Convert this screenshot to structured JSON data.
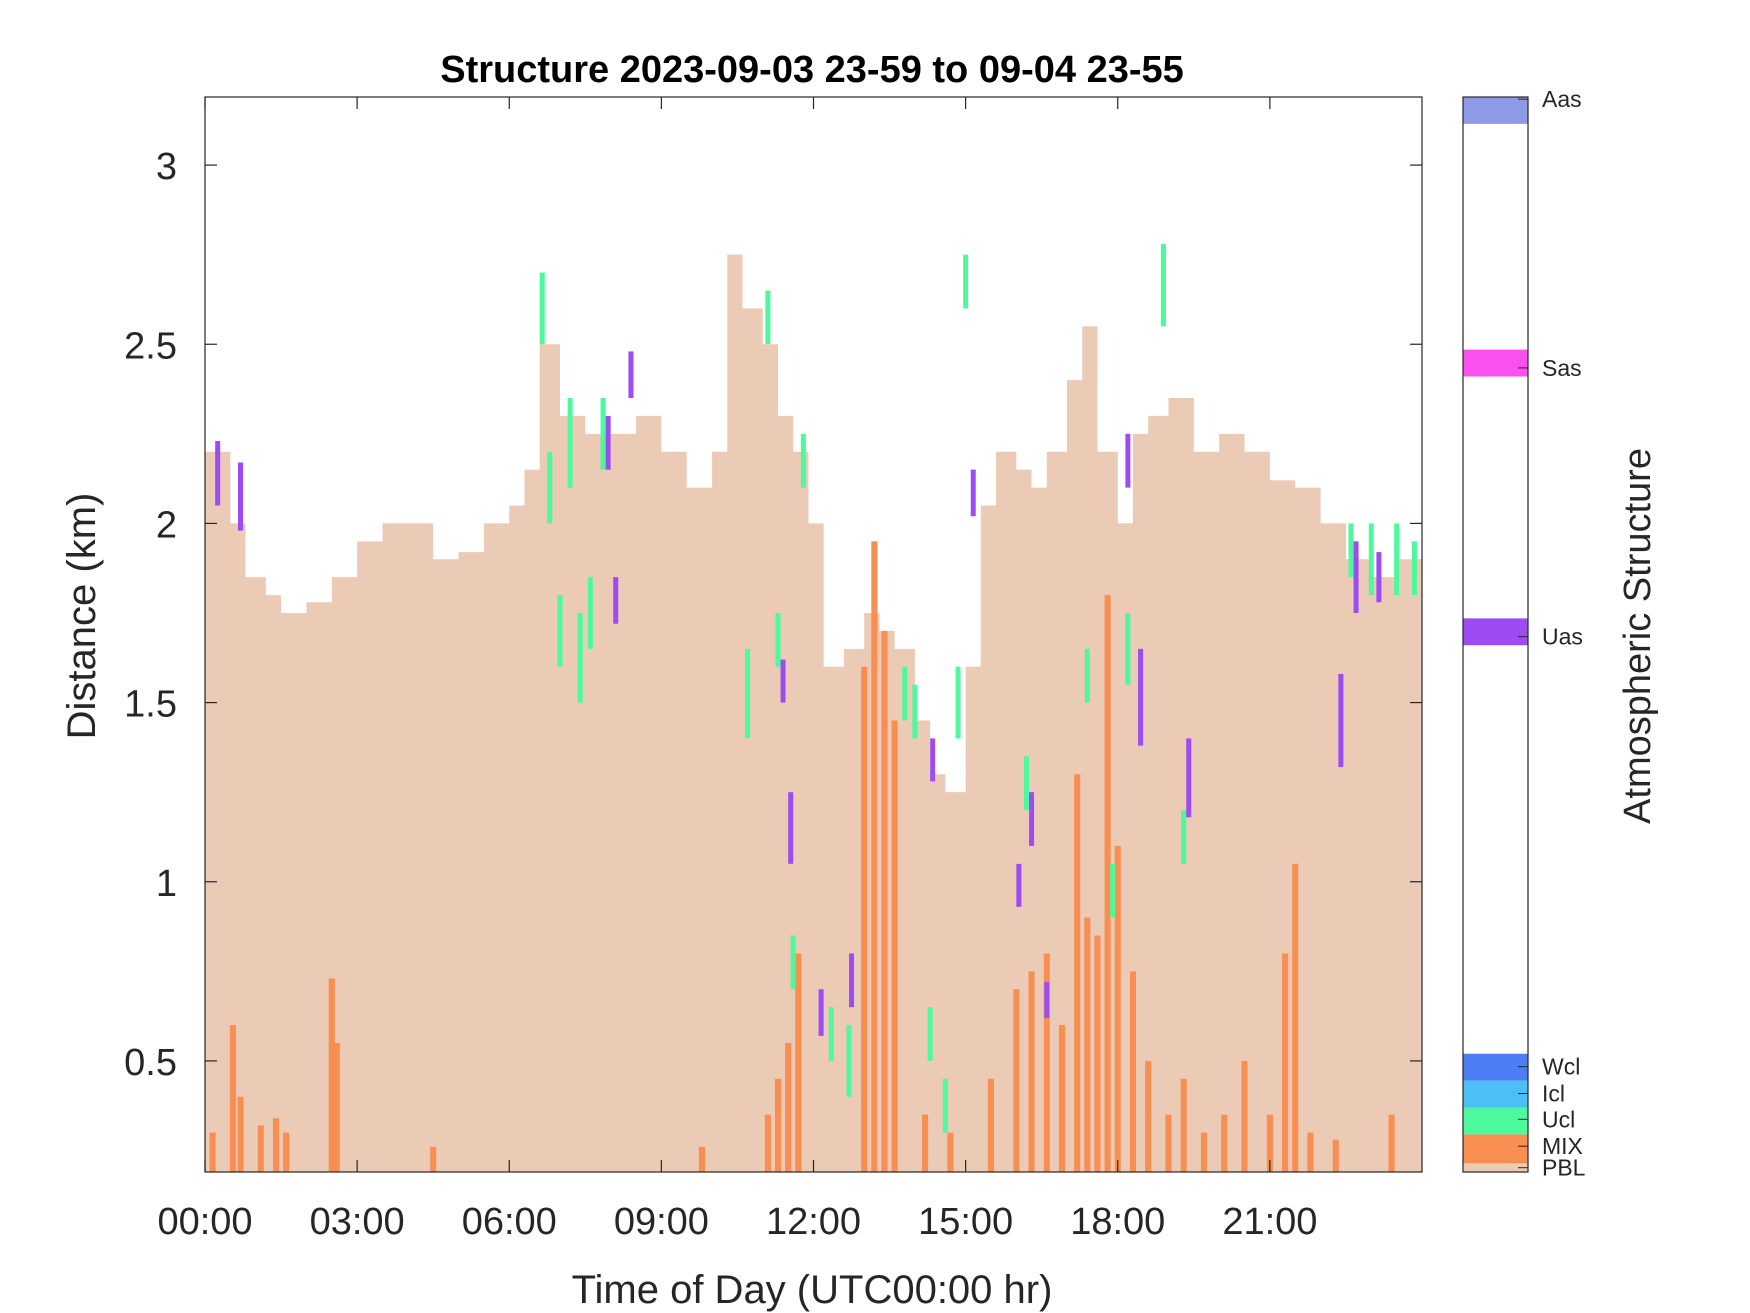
{
  "chart_data": {
    "type": "area",
    "title": "Structure 2023-09-03 23-59 to 09-04 23-55",
    "xlabel": "Time of Day (UTC00:00 hr)",
    "ylabel": "Distance (km)",
    "colorbar_label": "Atmospheric Structure",
    "xlim_hours": [
      0,
      24
    ],
    "ylim_km": [
      0.19,
      3.19
    ],
    "x_ticks_hours": [
      0,
      3,
      6,
      9,
      12,
      15,
      18,
      21
    ],
    "x_tick_labels": [
      "00:00",
      "03:00",
      "06:00",
      "09:00",
      "12:00",
      "15:00",
      "18:00",
      "21:00"
    ],
    "y_ticks": [
      0.5,
      1,
      1.5,
      2,
      2.5,
      3
    ],
    "y_tick_labels": [
      "0.5",
      "1",
      "1.5",
      "2",
      "2.5",
      "3"
    ],
    "grid": false,
    "legend": "colorbar-right",
    "categories": [
      {
        "code": "PBL",
        "color": "#EBCBB5"
      },
      {
        "code": "MIX",
        "color": "#F98E52"
      },
      {
        "code": "Ucl",
        "color": "#4CF99C"
      },
      {
        "code": "Icl",
        "color": "#4DBFF7"
      },
      {
        "code": "Wcl",
        "color": "#4E7EF6"
      },
      {
        "code": "Uas",
        "color": "#9C4CF2"
      },
      {
        "code": "Sas",
        "color": "#F950EE"
      },
      {
        "code": "Aas",
        "color": "#8F9AE8"
      }
    ],
    "series": [
      {
        "code": "PBL",
        "x_hours": [
          0,
          0.5,
          0.8,
          1.2,
          1.5,
          2,
          2.5,
          3,
          3.5,
          4,
          4.5,
          5,
          5.5,
          6,
          6.3,
          6.6,
          7,
          7.5,
          8,
          8.5,
          9,
          9.5,
          10,
          10.3,
          10.6,
          11,
          11.3,
          11.6,
          11.9,
          12.2,
          12.6,
          13,
          13.3,
          13.6,
          14,
          14.3,
          14.6,
          15,
          15.3,
          15.6,
          16,
          16.3,
          16.6,
          17,
          17.3,
          17.6,
          18,
          18.3,
          18.6,
          19,
          19.5,
          20,
          20.5,
          21,
          21.5,
          22,
          22.5,
          23,
          23.5,
          24
        ],
        "top_km": [
          2.2,
          2.0,
          1.85,
          1.8,
          1.75,
          1.78,
          1.85,
          1.95,
          2.0,
          2.0,
          1.9,
          1.92,
          2.0,
          2.05,
          2.15,
          2.5,
          2.3,
          2.25,
          2.25,
          2.3,
          2.2,
          2.1,
          2.2,
          2.75,
          2.6,
          2.5,
          2.3,
          2.2,
          2.0,
          1.6,
          1.65,
          1.75,
          1.7,
          1.65,
          1.45,
          1.3,
          1.25,
          1.6,
          2.05,
          2.2,
          2.15,
          2.1,
          2.2,
          2.4,
          2.55,
          2.2,
          2.0,
          2.25,
          2.3,
          2.35,
          2.2,
          2.25,
          2.2,
          2.12,
          2.1,
          2.0,
          1.9,
          1.85,
          1.9,
          1.85
        ]
      },
      {
        "code": "MIX",
        "bars": [
          {
            "x": 0.15,
            "top": 0.3
          },
          {
            "x": 0.55,
            "top": 0.6
          },
          {
            "x": 0.7,
            "top": 0.4
          },
          {
            "x": 1.1,
            "top": 0.32
          },
          {
            "x": 1.4,
            "top": 0.34
          },
          {
            "x": 1.6,
            "top": 0.3
          },
          {
            "x": 2.5,
            "top": 0.73
          },
          {
            "x": 2.6,
            "top": 0.55
          },
          {
            "x": 4.5,
            "top": 0.26
          },
          {
            "x": 9.8,
            "top": 0.26
          },
          {
            "x": 11.1,
            "top": 0.35
          },
          {
            "x": 11.3,
            "top": 0.45
          },
          {
            "x": 11.5,
            "top": 0.55
          },
          {
            "x": 11.7,
            "top": 0.8
          },
          {
            "x": 13.0,
            "top": 1.6
          },
          {
            "x": 13.2,
            "top": 1.95
          },
          {
            "x": 13.4,
            "top": 1.7
          },
          {
            "x": 13.6,
            "top": 1.45
          },
          {
            "x": 14.2,
            "top": 0.35
          },
          {
            "x": 14.7,
            "top": 0.3
          },
          {
            "x": 15.5,
            "top": 0.45
          },
          {
            "x": 16.0,
            "top": 0.7
          },
          {
            "x": 16.3,
            "top": 0.75
          },
          {
            "x": 16.6,
            "top": 0.8
          },
          {
            "x": 16.9,
            "top": 0.6
          },
          {
            "x": 17.2,
            "top": 1.3
          },
          {
            "x": 17.4,
            "top": 0.9
          },
          {
            "x": 17.6,
            "top": 0.85
          },
          {
            "x": 17.8,
            "top": 1.8
          },
          {
            "x": 18.0,
            "top": 1.1
          },
          {
            "x": 18.3,
            "top": 0.75
          },
          {
            "x": 18.6,
            "top": 0.5
          },
          {
            "x": 19.0,
            "top": 0.35
          },
          {
            "x": 19.3,
            "top": 0.45
          },
          {
            "x": 19.7,
            "top": 0.3
          },
          {
            "x": 20.1,
            "top": 0.35
          },
          {
            "x": 20.5,
            "top": 0.5
          },
          {
            "x": 21.0,
            "top": 0.35
          },
          {
            "x": 21.3,
            "top": 0.8
          },
          {
            "x": 21.5,
            "top": 1.05
          },
          {
            "x": 21.8,
            "top": 0.3
          },
          {
            "x": 22.3,
            "top": 0.28
          },
          {
            "x": 23.4,
            "top": 0.35
          }
        ]
      },
      {
        "code": "Ucl",
        "segments": [
          {
            "x": 6.65,
            "y": [
              2.5,
              2.7
            ]
          },
          {
            "x": 6.8,
            "y": [
              2.0,
              2.2
            ]
          },
          {
            "x": 7.0,
            "y": [
              1.6,
              1.8
            ]
          },
          {
            "x": 7.2,
            "y": [
              2.1,
              2.35
            ]
          },
          {
            "x": 7.4,
            "y": [
              1.5,
              1.75
            ]
          },
          {
            "x": 7.6,
            "y": [
              1.65,
              1.85
            ]
          },
          {
            "x": 7.85,
            "y": [
              2.15,
              2.35
            ]
          },
          {
            "x": 10.7,
            "y": [
              1.4,
              1.65
            ]
          },
          {
            "x": 11.1,
            "y": [
              2.5,
              2.65
            ]
          },
          {
            "x": 11.3,
            "y": [
              1.6,
              1.75
            ]
          },
          {
            "x": 11.6,
            "y": [
              0.7,
              0.85
            ]
          },
          {
            "x": 11.8,
            "y": [
              2.1,
              2.25
            ]
          },
          {
            "x": 12.35,
            "y": [
              0.5,
              0.65
            ]
          },
          {
            "x": 12.7,
            "y": [
              0.4,
              0.6
            ]
          },
          {
            "x": 13.8,
            "y": [
              1.45,
              1.6
            ]
          },
          {
            "x": 14.0,
            "y": [
              1.4,
              1.55
            ]
          },
          {
            "x": 14.3,
            "y": [
              0.5,
              0.65
            ]
          },
          {
            "x": 14.6,
            "y": [
              0.3,
              0.45
            ]
          },
          {
            "x": 14.85,
            "y": [
              1.4,
              1.6
            ]
          },
          {
            "x": 15.0,
            "y": [
              2.6,
              2.75
            ]
          },
          {
            "x": 16.2,
            "y": [
              1.2,
              1.35
            ]
          },
          {
            "x": 17.4,
            "y": [
              1.5,
              1.65
            ]
          },
          {
            "x": 17.9,
            "y": [
              0.9,
              1.05
            ]
          },
          {
            "x": 18.2,
            "y": [
              1.55,
              1.75
            ]
          },
          {
            "x": 18.9,
            "y": [
              2.55,
              2.78
            ]
          },
          {
            "x": 19.3,
            "y": [
              1.05,
              1.2
            ]
          },
          {
            "x": 22.6,
            "y": [
              1.85,
              2.0
            ]
          },
          {
            "x": 23.0,
            "y": [
              1.8,
              2.0
            ]
          },
          {
            "x": 23.5,
            "y": [
              1.8,
              2.0
            ]
          },
          {
            "x": 23.85,
            "y": [
              1.8,
              1.95
            ]
          }
        ]
      },
      {
        "code": "Uas",
        "segments": [
          {
            "x": 0.25,
            "y": [
              2.05,
              2.23
            ]
          },
          {
            "x": 0.7,
            "y": [
              1.98,
              2.17
            ]
          },
          {
            "x": 8.4,
            "y": [
              2.35,
              2.48
            ]
          },
          {
            "x": 7.95,
            "y": [
              2.15,
              2.3
            ]
          },
          {
            "x": 8.1,
            "y": [
              1.72,
              1.85
            ]
          },
          {
            "x": 11.4,
            "y": [
              1.5,
              1.62
            ]
          },
          {
            "x": 11.55,
            "y": [
              1.05,
              1.25
            ]
          },
          {
            "x": 12.15,
            "y": [
              0.57,
              0.7
            ]
          },
          {
            "x": 12.75,
            "y": [
              0.65,
              0.8
            ]
          },
          {
            "x": 14.35,
            "y": [
              1.28,
              1.4
            ]
          },
          {
            "x": 15.15,
            "y": [
              2.02,
              2.15
            ]
          },
          {
            "x": 16.05,
            "y": [
              0.93,
              1.05
            ]
          },
          {
            "x": 16.3,
            "y": [
              1.1,
              1.25
            ]
          },
          {
            "x": 16.6,
            "y": [
              0.62,
              0.72
            ]
          },
          {
            "x": 18.2,
            "y": [
              2.1,
              2.25
            ]
          },
          {
            "x": 18.45,
            "y": [
              1.38,
              1.65
            ]
          },
          {
            "x": 19.4,
            "y": [
              1.18,
              1.4
            ]
          },
          {
            "x": 22.4,
            "y": [
              1.32,
              1.58
            ]
          },
          {
            "x": 22.7,
            "y": [
              1.75,
              1.95
            ]
          },
          {
            "x": 23.15,
            "y": [
              1.78,
              1.92
            ]
          }
        ]
      }
    ]
  }
}
